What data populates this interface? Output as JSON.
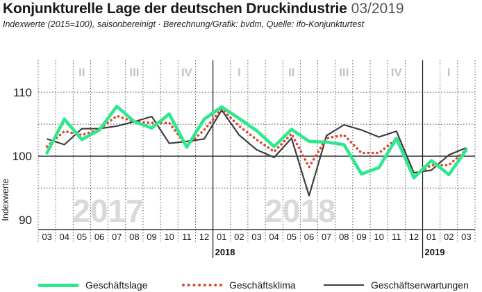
{
  "header": {
    "title": "Konjunkturelle Lage der deutschen Druckindustrie",
    "date": "03/2019",
    "subtitle": "Indexwerte (2015=100), saisonbereinigt · Berechnung/Grafik: bvdm, Quelle: ifo-Konjunkturtest"
  },
  "colors": {
    "geschaeftslage": "#2de88f",
    "geschaeftsklima": "#e0442a",
    "geschaeftserwartungen": "#3d3d3d",
    "watermark": "#d9d9d9",
    "quarter": "#c4c4c4"
  },
  "chart_data": {
    "type": "line",
    "title": "Konjunkturelle Lage der deutschen Druckindustrie",
    "ylabel": "Indexwerte",
    "xlabel": "",
    "ylim": [
      88.5,
      115
    ],
    "yticks": [
      90,
      100,
      110
    ],
    "categories": [
      "03",
      "04",
      "05",
      "06",
      "07",
      "08",
      "09",
      "10",
      "11",
      "12",
      "01",
      "02",
      "03",
      "04",
      "05",
      "06",
      "07",
      "08",
      "09",
      "10",
      "11",
      "12",
      "01",
      "02",
      "03"
    ],
    "quarters": [
      {
        "label": "II",
        "start": 1,
        "end": 3
      },
      {
        "label": "III",
        "start": 4,
        "end": 6
      },
      {
        "label": "IV",
        "start": 7,
        "end": 9
      },
      {
        "label": "I",
        "start": 10,
        "end": 12
      },
      {
        "label": "II",
        "start": 13,
        "end": 15
      },
      {
        "label": "III",
        "start": 16,
        "end": 18
      },
      {
        "label": "IV",
        "start": 19,
        "end": 21
      },
      {
        "label": "I",
        "start": 22,
        "end": 24
      }
    ],
    "years": [
      {
        "label": "2018",
        "index": 10
      },
      {
        "label": "2019",
        "index": 22
      }
    ],
    "watermarks": [
      {
        "label": "2017",
        "start": 1,
        "end": 6
      },
      {
        "label": "2018",
        "start": 12,
        "end": 17
      }
    ],
    "series": [
      {
        "name": "Geschäftslage",
        "style": "solid-thick",
        "values": [
          100.5,
          105.8,
          102.6,
          104.1,
          107.8,
          105.4,
          104.4,
          106.6,
          101.4,
          105.8,
          107.7,
          105.9,
          104.0,
          101.5,
          104.2,
          102.3,
          102.2,
          101.8,
          97.2,
          98.2,
          102.8,
          96.6,
          99.3,
          97.1,
          101.0
        ]
      },
      {
        "name": "Geschäftsklima",
        "style": "dotted",
        "values": [
          101.5,
          103.9,
          103.3,
          104.2,
          106.3,
          105.4,
          105.2,
          105.2,
          101.6,
          104.1,
          107.4,
          104.7,
          102.6,
          100.7,
          103.5,
          98.3,
          102.8,
          103.3,
          100.5,
          100.5,
          102.7,
          96.9,
          98.6,
          98.6,
          101.0
        ]
      },
      {
        "name": "Geschäftserwartungen",
        "style": "solid-thin",
        "values": [
          102.7,
          101.8,
          104.3,
          104.3,
          104.7,
          105.4,
          106.2,
          102.0,
          102.3,
          102.7,
          107.2,
          103.3,
          101.0,
          99.8,
          102.8,
          93.8,
          103.2,
          104.9,
          104.1,
          103.0,
          103.9,
          97.4,
          97.8,
          100.2,
          101.3
        ]
      }
    ]
  },
  "legend": [
    {
      "label": "Geschäftslage"
    },
    {
      "label": "Geschäftsklima"
    },
    {
      "label": "Geschäftserwartungen"
    }
  ]
}
